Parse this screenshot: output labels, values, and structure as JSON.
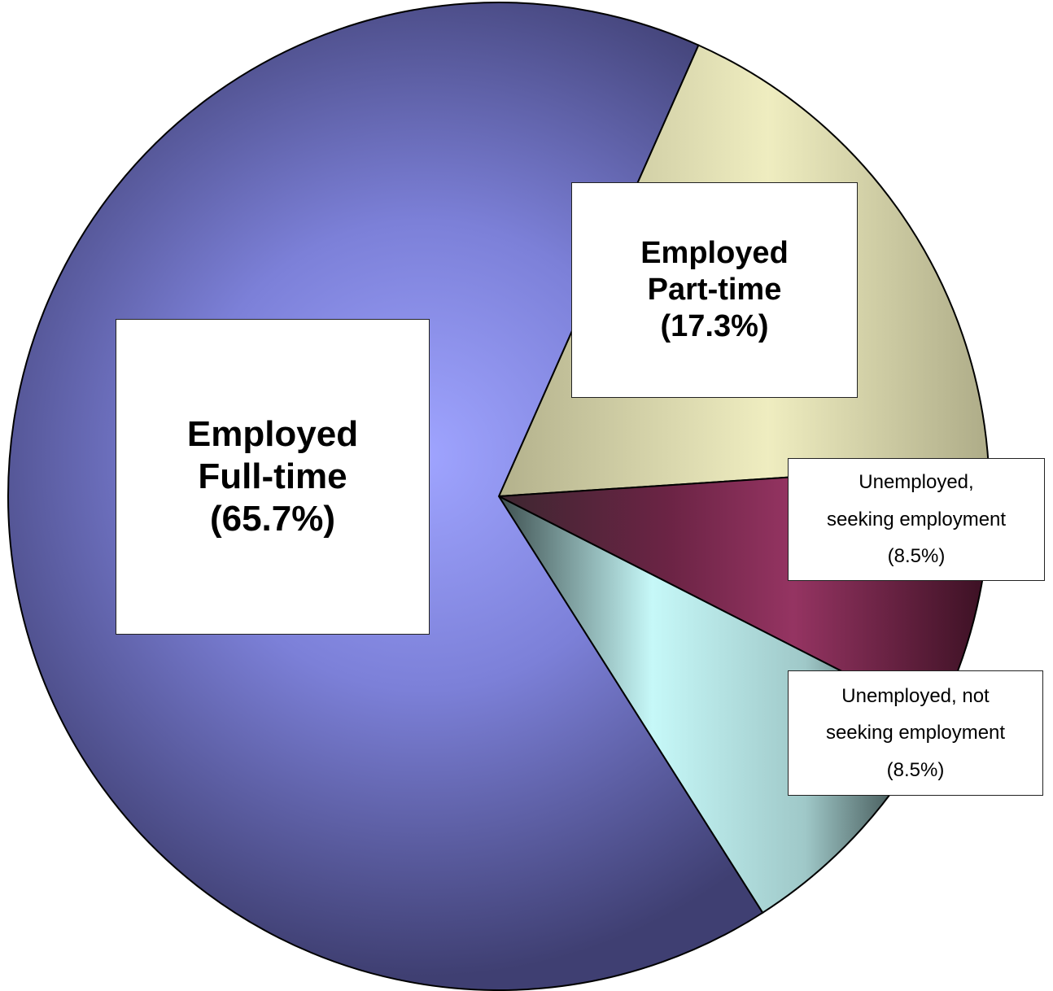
{
  "chart_data": {
    "type": "pie",
    "slices": [
      {
        "label": "Employed Full-time",
        "value": 65.7,
        "color": "#8a90ee"
      },
      {
        "label": "Employed Part-time",
        "value": 17.3,
        "color": "#e6e3b6"
      },
      {
        "label": "Unemployed, seeking employment",
        "value": 8.5,
        "color": "#8e2f5e"
      },
      {
        "label": "Unemployed, not seeking employment",
        "value": 8.5,
        "color": "#c8f6f6"
      }
    ]
  },
  "labels": {
    "full_time": {
      "line1": "Employed",
      "line2": "Full-time",
      "pct": "(65.7%)"
    },
    "part_time": {
      "line1": "Employed",
      "line2": "Part-time",
      "pct": "(17.3%)"
    },
    "seeking": {
      "line1": "Unemployed,",
      "line2": "seeking employment",
      "pct": "(8.5%)"
    },
    "not_seeking": {
      "line1": "Unemployed, not",
      "line2": "seeking employment",
      "pct": "(8.5%)"
    }
  }
}
